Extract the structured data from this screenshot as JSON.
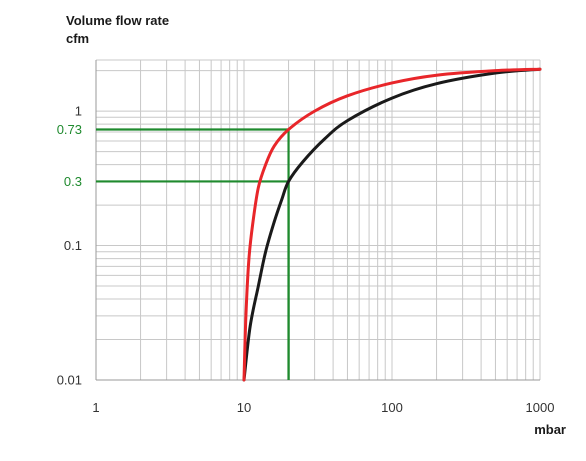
{
  "chart_data": {
    "type": "line",
    "ylabel_line1": "Volume flow rate",
    "ylabel_line2": "cfm",
    "xlabel": "mbar",
    "xscale": "log",
    "yscale": "log",
    "xlim": [
      1,
      1000
    ],
    "ylim": [
      0.01,
      2.4
    ],
    "grid": true,
    "x_ticks": [
      {
        "value": 1,
        "label": "1"
      },
      {
        "value": 10,
        "label": "10"
      },
      {
        "value": 100,
        "label": "100"
      },
      {
        "value": 1000,
        "label": "1000"
      }
    ],
    "y_ticks": [
      {
        "value": 0.01,
        "label": "0.01",
        "highlight": false
      },
      {
        "value": 0.1,
        "label": "0.1",
        "highlight": false
      },
      {
        "value": 0.3,
        "label": "0.3",
        "highlight": true
      },
      {
        "value": 0.73,
        "label": "0.73",
        "highlight": true
      },
      {
        "value": 1,
        "label": "1",
        "highlight": false
      }
    ],
    "series": [
      {
        "color": "#e8262a",
        "points": [
          [
            10,
            0.01
          ],
          [
            10.3,
            0.03
          ],
          [
            10.8,
            0.08
          ],
          [
            11.5,
            0.15
          ],
          [
            12.5,
            0.27
          ],
          [
            14,
            0.4
          ],
          [
            16,
            0.55
          ],
          [
            20,
            0.73
          ],
          [
            30,
            1.0
          ],
          [
            50,
            1.3
          ],
          [
            100,
            1.62
          ],
          [
            200,
            1.85
          ],
          [
            500,
            2.0
          ],
          [
            1000,
            2.05
          ]
        ]
      },
      {
        "color": "#1a1a1a",
        "points": [
          [
            10,
            0.01
          ],
          [
            11,
            0.025
          ],
          [
            12.5,
            0.05
          ],
          [
            14,
            0.09
          ],
          [
            16,
            0.15
          ],
          [
            18,
            0.22
          ],
          [
            20,
            0.3
          ],
          [
            25,
            0.42
          ],
          [
            35,
            0.62
          ],
          [
            50,
            0.85
          ],
          [
            100,
            1.25
          ],
          [
            200,
            1.6
          ],
          [
            500,
            1.92
          ],
          [
            1000,
            2.05
          ]
        ]
      }
    ],
    "reference_lines": [
      {
        "x": 20,
        "y": 0.73,
        "color": "#1f8a2e"
      },
      {
        "x": 20,
        "y": 0.3,
        "color": "#1f8a2e"
      }
    ],
    "colors": {
      "grid": "#c8c8c8",
      "axis": "#9a9a9a",
      "tick_label": "#333333",
      "highlight_label": "#1f8a2e"
    }
  }
}
